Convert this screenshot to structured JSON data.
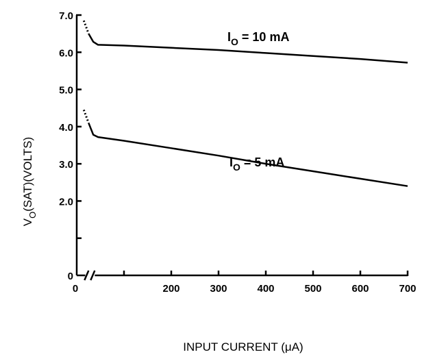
{
  "chart_data": {
    "type": "line",
    "xlabel": "INPUT CURRENT (μA)",
    "ylabel": "VO(SAT)(VOLTS)",
    "ylabel_main": "V",
    "ylabel_sub": "O",
    "ylabel_rest": "(SAT)(VOLTS)",
    "xlim": [
      0,
      700
    ],
    "ylim": [
      0,
      7.0
    ],
    "x_axis_break": true,
    "x_ticks": [
      {
        "value": 0,
        "label": "0"
      },
      {
        "value": 100,
        "label": ""
      },
      {
        "value": 200,
        "label": "200"
      },
      {
        "value": 300,
        "label": "300"
      },
      {
        "value": 400,
        "label": "400"
      },
      {
        "value": 500,
        "label": "500"
      },
      {
        "value": 600,
        "label": "600"
      },
      {
        "value": 700,
        "label": "700"
      }
    ],
    "y_ticks": [
      {
        "value": 0,
        "label": "0"
      },
      {
        "value": 1.0,
        "label": ""
      },
      {
        "value": 2.0,
        "label": "2.0"
      },
      {
        "value": 3.0,
        "label": "3.0"
      },
      {
        "value": 4.0,
        "label": "4.0"
      },
      {
        "value": 5.0,
        "label": "5.0"
      },
      {
        "value": 6.0,
        "label": "6.0"
      },
      {
        "value": 7.0,
        "label": "7.0"
      }
    ],
    "grid": false,
    "series": [
      {
        "name": "IO = 10 mA",
        "label_main": "I",
        "label_sub": "O",
        "label_rest": " = 10 mA",
        "x": [
          15,
          25,
          35,
          45,
          100,
          200,
          300,
          400,
          500,
          600,
          700
        ],
        "y": [
          6.85,
          6.5,
          6.28,
          6.2,
          6.18,
          6.12,
          6.06,
          5.98,
          5.9,
          5.82,
          5.72
        ]
      },
      {
        "name": "IO = 5 mA",
        "label_main": "I",
        "label_sub": "O",
        "label_rest": " = 5 mA",
        "x": [
          15,
          25,
          35,
          45,
          100,
          200,
          300,
          400,
          500,
          600,
          700
        ],
        "y": [
          4.45,
          4.1,
          3.78,
          3.72,
          3.62,
          3.42,
          3.22,
          3.0,
          2.8,
          2.6,
          2.4
        ]
      }
    ]
  }
}
